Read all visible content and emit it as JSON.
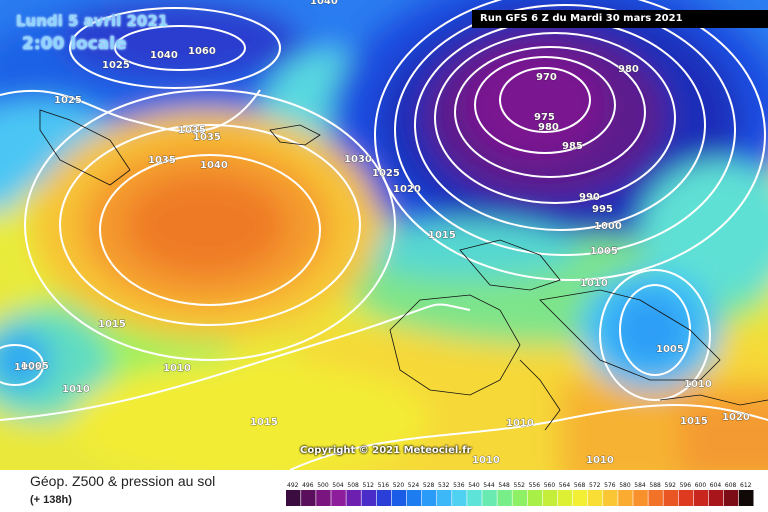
{
  "header": {
    "date": "Lundi 5 avril 2021",
    "local_time": "2:00 locale",
    "run": "Run GFS 6 Z du Mardi 30 mars 2021"
  },
  "copyright": "Copyright © 2021 Meteociel.fr",
  "footer": {
    "product": "Géop. Z500 & pression au sol",
    "lead_time": "(+ 138h)"
  },
  "scale": {
    "ticks": [
      "492",
      "496",
      "500",
      "504",
      "508",
      "512",
      "516",
      "520",
      "524",
      "528",
      "532",
      "536",
      "540",
      "544",
      "548",
      "552",
      "556",
      "560",
      "564",
      "568",
      "572",
      "576",
      "580",
      "584",
      "588",
      "592",
      "596",
      "600",
      "604",
      "608",
      "612"
    ],
    "colors": [
      "#3b0c40",
      "#5a0f5c",
      "#7a1580",
      "#8e1d9c",
      "#6d1fb0",
      "#4a2cc8",
      "#2a3fd8",
      "#1a5be8",
      "#1d7cf0",
      "#2a9cf7",
      "#3cb8f8",
      "#4fd2f2",
      "#5de3d8",
      "#69eab0",
      "#78ee88",
      "#8ef064",
      "#a8f048",
      "#c4ee3a",
      "#def034",
      "#f3ef34",
      "#f9de36",
      "#fbc634",
      "#fbab30",
      "#f8902c",
      "#f27328",
      "#ea5524",
      "#de3a20",
      "#c9261e",
      "#a8161c",
      "#7c0d16",
      "#110808"
    ]
  },
  "isobar_labels": [
    "1040",
    "1060",
    "1025",
    "1040",
    "1025",
    "1035",
    "1035",
    "1035",
    "1040",
    "1030",
    "1025",
    "1020",
    "1015",
    "970",
    "980",
    "975",
    "980",
    "985",
    "990",
    "995",
    "1000",
    "1005",
    "1010",
    "1005",
    "1010",
    "1015",
    "1005",
    "1010",
    "1010",
    "1015",
    "1010",
    "1005",
    "1010",
    "1015",
    "1020",
    "1010"
  ]
}
